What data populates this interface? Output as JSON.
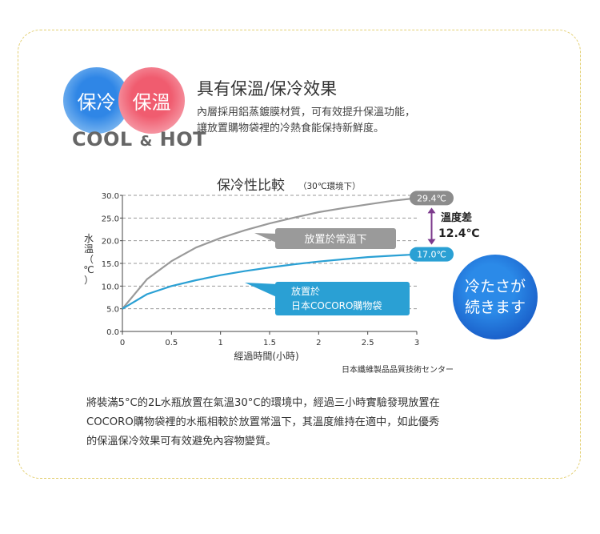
{
  "badges": {
    "cold": "保冷",
    "hot": "保溫",
    "subtitle_left": "COOL",
    "subtitle_amp": "&",
    "subtitle_right": "HOT"
  },
  "headline": "具有保溫/保冷效果",
  "description": [
    "內層採用鋁蒸鍍膜材質，可有效提升保溫功能，",
    "讓放置購物袋裡的冷熱食能保持新鮮度。"
  ],
  "chart_data": {
    "type": "line",
    "title": "保冷性比較",
    "title_note": "（30℃環境下）",
    "xlabel": "經過時間(小時)",
    "ylabel": "水溫（℃）",
    "xlim": [
      0,
      3
    ],
    "ylim": [
      0,
      30
    ],
    "xticks": [
      "0",
      "0.5",
      "1",
      "1.5",
      "2",
      "2.5",
      "3"
    ],
    "yticks": [
      "0.0",
      "5.0",
      "10.0",
      "15.0",
      "20.0",
      "25.0",
      "30.0"
    ],
    "series": [
      {
        "name": "放置於常溫下",
        "color": "#999999",
        "end_label": "29.4℃",
        "x": [
          0,
          0.25,
          0.5,
          0.75,
          1,
          1.25,
          1.5,
          1.75,
          2,
          2.25,
          2.5,
          2.75,
          3
        ],
        "y": [
          5,
          11.5,
          15.5,
          18.5,
          20.6,
          22.3,
          23.8,
          25.1,
          26.3,
          27.2,
          28,
          28.8,
          29.4
        ]
      },
      {
        "name": "放置於 日本COCORO購物袋",
        "name_lines": [
          "放置於",
          "日本COCORO購物袋"
        ],
        "color": "#2aa0d4",
        "end_label": "17.0℃",
        "x": [
          0,
          0.25,
          0.5,
          0.75,
          1,
          1.25,
          1.5,
          1.75,
          2,
          2.25,
          2.5,
          2.75,
          3
        ],
        "y": [
          5,
          8.2,
          10,
          11.3,
          12.4,
          13.3,
          14.1,
          14.8,
          15.4,
          15.9,
          16.4,
          16.7,
          17.0
        ]
      }
    ],
    "annotation": {
      "label": "溫度差",
      "value": "12.4℃"
    }
  },
  "bubble": [
    "冷たさが",
    "続きます"
  ],
  "source": "日本纖維製品品質技術センター",
  "bottom_text": [
    "將裝滿5°C的2L水瓶放置在氣溫30°C的環境中，經過三小時實驗發現放置在",
    "COCORO購物袋裡的水瓶相較於放置常溫下，其溫度維持在適中，如此優秀",
    "的保溫保冷效果可有效避免內容物變質。"
  ]
}
